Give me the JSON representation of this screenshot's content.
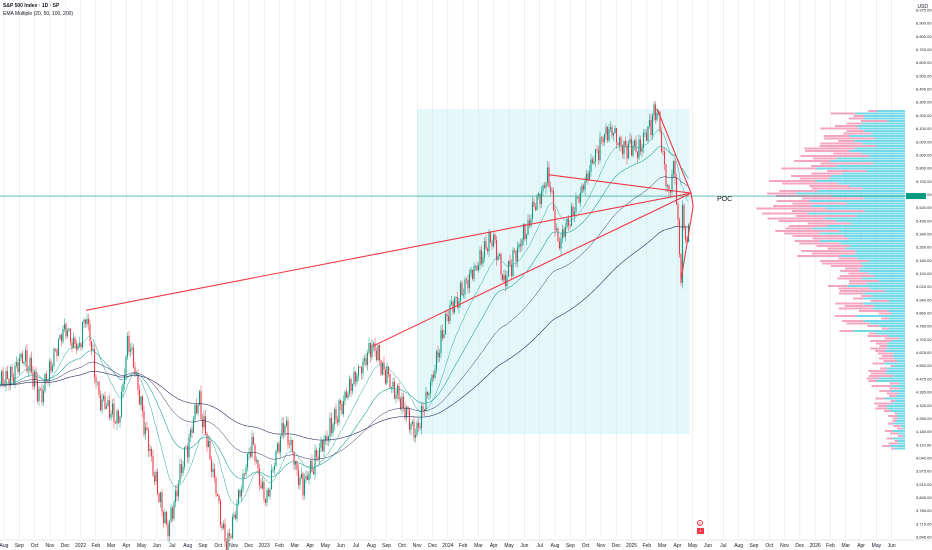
{
  "header": {
    "title": "S&P 500 Index · 1D · SP",
    "indicator": "EMA Multiple (20, 50, 100, 200)",
    "currency": "USD"
  },
  "annotations": {
    "poc_label": "POC",
    "event_marker": "E",
    "event_badge": "1"
  },
  "colors": {
    "up_candle": "#089981",
    "down_candle": "#f23645",
    "trendline": "#f23645",
    "ema_fast": "#26a69a",
    "ema_slow": "#2a2e5c",
    "box_fill": "#b2ebf2",
    "poc_line": "#089981",
    "vp_up": "#4dd0e1",
    "vp_down": "#f48fb1"
  },
  "chart_data": {
    "type": "candlestick",
    "title": "S&P 500 Index · 1D · SP",
    "price_axis_labels": [
      "6,975.00",
      "6,900.00",
      "6,800.00",
      "6,700.00",
      "6,600.00",
      "6,500.00",
      "6,400.00",
      "6,300.00",
      "6,200.00",
      "6,100.00",
      "6,000.00",
      "5,900.00",
      "5,800.00",
      "5,700.00",
      "5,600.00",
      "5,520.00",
      "5,430.00",
      "5,340.00",
      "5,260.00",
      "5,180.00",
      "5,100.00",
      "5,020.00",
      "4,940.00",
      "4,860.00",
      "4,780.00",
      "4,700.00",
      "4,625.00",
      "4,550.00",
      "4,475.00",
      "4,395.00",
      "4,325.00",
      "4,250.00",
      "4,180.00",
      "4,110.00",
      "4,040.00",
      "3,975.00",
      "3,910.00",
      "3,845.00",
      "3,780.00",
      "3,715.00",
      "3,646.00"
    ],
    "time_axis_labels": [
      "Aug",
      "Sep",
      "Oct",
      "Nov",
      "Dec",
      "2022",
      "Feb",
      "Mar",
      "Apr",
      "May",
      "Jun",
      "Jul",
      "Aug",
      "Sep",
      "Oct",
      "Nov",
      "Dec",
      "2023",
      "Feb",
      "Mar",
      "Apr",
      "May",
      "Jun",
      "Jul",
      "Aug",
      "Sep",
      "Oct",
      "Nov",
      "Dec",
      "2024",
      "Feb",
      "Mar",
      "Apr",
      "May",
      "Jun",
      "Jul",
      "Aug",
      "Sep",
      "Oct",
      "Nov",
      "Dec",
      "2025",
      "Feb",
      "Mar",
      "Apr",
      "May",
      "Jun",
      "Jul",
      "Aug",
      "Sep",
      "Oct",
      "Nov",
      "Dec",
      "2026",
      "Feb",
      "Mar",
      "Apr",
      "May",
      "Jun"
    ],
    "price_path": [
      [
        "2021-08-01",
        4400
      ],
      [
        "2021-09-02",
        4537
      ],
      [
        "2021-10-04",
        4300
      ],
      [
        "2021-11-18",
        4704
      ],
      [
        "2021-12-20",
        4568
      ],
      [
        "2022-01-03",
        4796
      ],
      [
        "2022-01-27",
        4326
      ],
      [
        "2022-03-08",
        4170
      ],
      [
        "2022-03-29",
        4631
      ],
      [
        "2022-05-20",
        3900
      ],
      [
        "2022-06-16",
        3666
      ],
      [
        "2022-08-16",
        4305
      ],
      [
        "2022-10-12",
        3577
      ],
      [
        "2022-11-30",
        4080
      ],
      [
        "2022-12-28",
        3783
      ],
      [
        "2023-02-02",
        4179
      ],
      [
        "2023-03-13",
        3855
      ],
      [
        "2023-06-30",
        4450
      ],
      [
        "2023-07-31",
        4589
      ],
      [
        "2023-10-27",
        4117
      ],
      [
        "2023-12-29",
        4770
      ],
      [
        "2024-03-28",
        5254
      ],
      [
        "2024-04-19",
        4967
      ],
      [
        "2024-07-16",
        5667
      ],
      [
        "2024-08-05",
        5186
      ],
      [
        "2024-11-11",
        6001
      ],
      [
        "2024-12-19",
        5867
      ],
      [
        "2025-01-13",
        5836
      ],
      [
        "2025-02-19",
        6144
      ],
      [
        "2025-03-13",
        5521
      ],
      [
        "2025-03-25",
        5776
      ],
      [
        "2025-04-08",
        4982
      ],
      [
        "2025-04-09",
        5456
      ],
      [
        "2025-04-21",
        5158
      ],
      [
        "2025-04-25",
        5525
      ]
    ],
    "trendlines": [
      [
        [
          "2022-01-03",
          4796
        ],
        [
          "2025-04-28",
          5540
        ]
      ],
      [
        [
          "2023-07-31",
          4589
        ],
        [
          "2025-04-28",
          5540
        ]
      ],
      [
        [
          "2024-07-16",
          5667
        ],
        [
          "2025-04-28",
          5540
        ]
      ],
      [
        [
          "2025-02-19",
          6144
        ],
        [
          "2025-04-28",
          5540
        ]
      ],
      [
        [
          "2025-04-28",
          5540
        ],
        [
          "2025-05-02",
          5450
        ]
      ],
      [
        [
          "2025-05-02",
          5450
        ],
        [
          "2025-04-08",
          4982
        ]
      ]
    ],
    "range_box": {
      "from": "2023-10-27",
      "to": "2025-04-25",
      "low": 4117,
      "high": 6144
    },
    "poc_price": 5520,
    "series": [
      {
        "name": "EMA 20"
      },
      {
        "name": "EMA 50"
      },
      {
        "name": "EMA 100"
      },
      {
        "name": "EMA 200"
      }
    ],
    "log_scale": true,
    "grid": "vertical"
  }
}
